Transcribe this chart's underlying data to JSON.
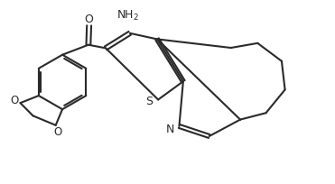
{
  "bg_color": "#ffffff",
  "line_color": "#2a2a2a",
  "figsize": [
    3.71,
    2.04
  ],
  "dpi": 100,
  "nh2_label": "NH$_2$",
  "s_label": "S",
  "n_label": "N",
  "o_label": "O",
  "o2_label": "O",
  "carbonyl_o": "O",
  "xlim": [
    0,
    10
  ],
  "ylim": [
    0,
    5.5
  ]
}
